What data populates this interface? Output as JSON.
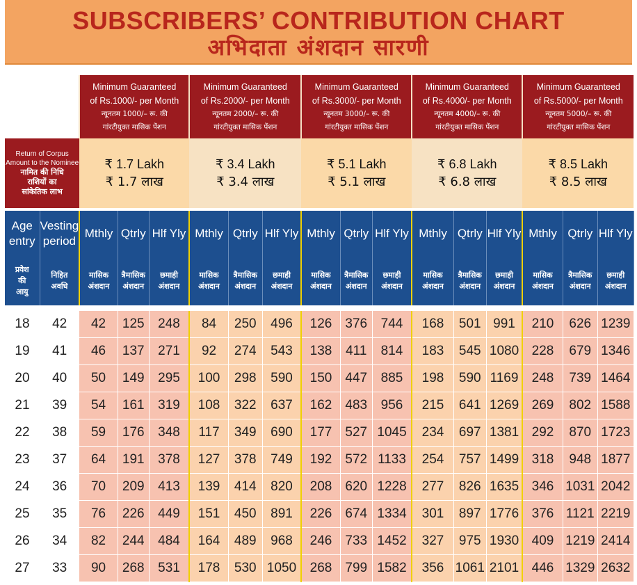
{
  "title": {
    "english": "SUBSCRIBERS’ CONTRIBUTION CHART",
    "hindi": "अभिदाता अंशदान सारणी"
  },
  "pensions": [
    {
      "en1": "Minimum Guaranteed",
      "en2": "of Rs.1000/- per Month",
      "hi1": "न्यूनतम 1000/– रू. की",
      "hi2": "गांरटीयुक्त मासिक पेंशन",
      "corpus_en": "₹ 1.7 Lakh",
      "corpus_hi": "₹ 1.7 लाख"
    },
    {
      "en1": "Minimum Guaranteed",
      "en2": "of Rs.2000/- per Month",
      "hi1": "न्यूनतम 2000/– रू. की",
      "hi2": "गांरटीयुक्त मासिक पेंशन",
      "corpus_en": "₹ 3.4 Lakh",
      "corpus_hi": "₹ 3.4 लाख"
    },
    {
      "en1": "Minimum Guaranteed",
      "en2": "of Rs.3000/- per Month",
      "hi1": "न्यूनतम 3000/– रू. की",
      "hi2": "गांरटीयुक्त मासिक पेंशन",
      "corpus_en": "₹ 5.1 Lakh",
      "corpus_hi": "₹ 5.1 लाख"
    },
    {
      "en1": "Minimum Guaranteed",
      "en2": "of Rs.4000/- per Month",
      "hi1": "न्यूनतम 4000/– रू. की",
      "hi2": "गांरटीयुक्त मासिक पेंशन",
      "corpus_en": "₹ 6.8 Lakh",
      "corpus_hi": "₹ 6.8 लाख"
    },
    {
      "en1": "Minimum Guaranteed",
      "en2": "of Rs.5000/- per Month",
      "hi1": "न्यूनतम 5000/– रू. की",
      "hi2": "गांरटीयुक्त मासिक पेंशन",
      "corpus_en": "₹ 8.5 Lakh",
      "corpus_hi": "₹ 8.5 लाख"
    }
  ],
  "corpus_label": {
    "en1": "Return of Corpus",
    "en2": "Amount to the Nominee",
    "hi1": "नामित की निधि",
    "hi2": "राशियों का",
    "hi3": "सांकेतिक लाभ"
  },
  "headers": {
    "age_en1": "Age",
    "age_en2": "entry",
    "age_hi1": "प्रवेश",
    "age_hi2": "की",
    "age_hi3": "आयु",
    "vest_en1": "Vesting",
    "vest_en2": "period",
    "vest_hi1": "निहित",
    "vest_hi2": "अवधि",
    "mthly_en": "Mthly",
    "qtrly_en": "Qtrly",
    "hlf_en": "Hlf Yly",
    "mthly_hi1": "मासिक",
    "qtrly_hi1": "त्रैमासिक",
    "hlf_hi1": "छमाही",
    "contrib_hi": "अंशदान"
  },
  "rows": [
    {
      "age": "18",
      "vest": "42",
      "v": [
        "42",
        "125",
        "248",
        "84",
        "250",
        "496",
        "126",
        "376",
        "744",
        "168",
        "501",
        "991",
        "210",
        "626",
        "1239"
      ]
    },
    {
      "age": "19",
      "vest": "41",
      "v": [
        "46",
        "137",
        "271",
        "92",
        "274",
        "543",
        "138",
        "411",
        "814",
        "183",
        "545",
        "1080",
        "228",
        "679",
        "1346"
      ]
    },
    {
      "age": "20",
      "vest": "40",
      "v": [
        "50",
        "149",
        "295",
        "100",
        "298",
        "590",
        "150",
        "447",
        "885",
        "198",
        "590",
        "1169",
        "248",
        "739",
        "1464"
      ]
    },
    {
      "age": "21",
      "vest": "39",
      "v": [
        "54",
        "161",
        "319",
        "108",
        "322",
        "637",
        "162",
        "483",
        "956",
        "215",
        "641",
        "1269",
        "269",
        "802",
        "1588"
      ]
    },
    {
      "age": "22",
      "vest": "38",
      "v": [
        "59",
        "176",
        "348",
        "117",
        "349",
        "690",
        "177",
        "527",
        "1045",
        "234",
        "697",
        "1381",
        "292",
        "870",
        "1723"
      ]
    },
    {
      "age": "23",
      "vest": "37",
      "v": [
        "64",
        "191",
        "378",
        "127",
        "378",
        "749",
        "192",
        "572",
        "1133",
        "254",
        "757",
        "1499",
        "318",
        "948",
        "1877"
      ]
    },
    {
      "age": "24",
      "vest": "36",
      "v": [
        "70",
        "209",
        "413",
        "139",
        "414",
        "820",
        "208",
        "620",
        "1228",
        "277",
        "826",
        "1635",
        "346",
        "1031",
        "2042"
      ]
    },
    {
      "age": "25",
      "vest": "35",
      "v": [
        "76",
        "226",
        "449",
        "151",
        "450",
        "891",
        "226",
        "674",
        "1334",
        "301",
        "897",
        "1776",
        "376",
        "1121",
        "2219"
      ]
    },
    {
      "age": "26",
      "vest": "34",
      "v": [
        "82",
        "244",
        "484",
        "164",
        "489",
        "968",
        "246",
        "733",
        "1452",
        "327",
        "975",
        "1930",
        "409",
        "1219",
        "2414"
      ]
    },
    {
      "age": "27",
      "vest": "33",
      "v": [
        "90",
        "268",
        "531",
        "178",
        "530",
        "1050",
        "268",
        "799",
        "1582",
        "356",
        "1061",
        "2101",
        "446",
        "1329",
        "2632"
      ]
    }
  ],
  "colors": {
    "banner": "#f3a461",
    "title_text": "#b8261c",
    "header_maroon": "#9b1b1f",
    "header_blue": "#1d4f8f",
    "cell_pink": "#f7c2b0",
    "cell_peach": "#fbd2ad",
    "divider_yellow": "#f0d000"
  }
}
